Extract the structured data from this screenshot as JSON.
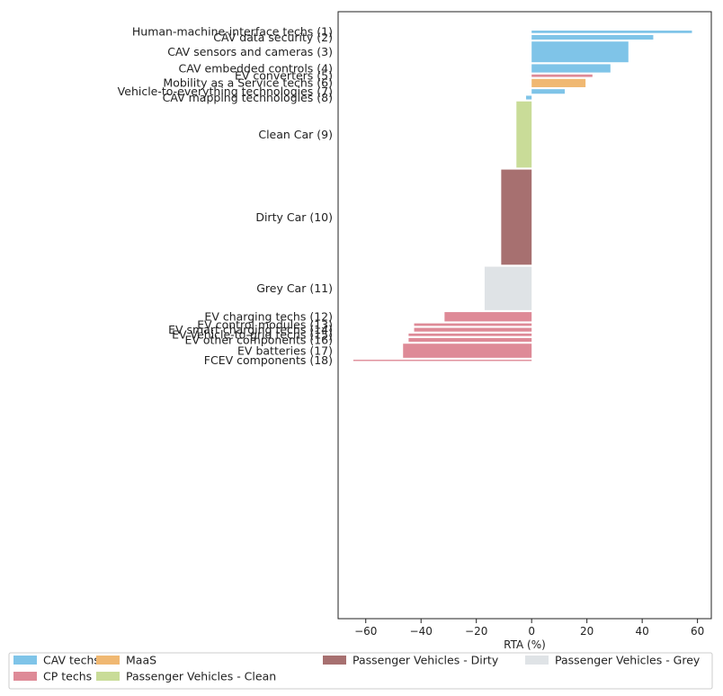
{
  "chart_data": {
    "type": "bar",
    "orientation": "horizontal",
    "title": "",
    "xlabel": "RTA (%)",
    "ylabel": "",
    "xlim": [
      -70,
      65
    ],
    "xticks": [
      -60,
      -40,
      -20,
      0,
      20,
      40,
      60
    ],
    "grid": false,
    "legend_position": "bottom",
    "bar_width_encodes": "relative size of technology field (variable bar thickness)",
    "groups": [
      {
        "name": "CAV techs",
        "color": "#7fc4e8"
      },
      {
        "name": "CP techs",
        "color": "#de8a97"
      },
      {
        "name": "MaaS",
        "color": "#f0b872"
      },
      {
        "name": "Passenger Vehicles - Clean",
        "color": "#c9dc98"
      },
      {
        "name": "Passenger Vehicles - Dirty",
        "color": "#a77070"
      },
      {
        "name": "Passenger Vehicles - Grey",
        "color": "#dfe3e6"
      }
    ],
    "categories": [
      "Human-machine-interface techs (1)",
      "CAV data security (2)",
      "CAV sensors and cameras (3)",
      "CAV embedded controls (4)",
      "EV converters (5)",
      "Mobility as a Service techs (6)",
      "Vehicle-to-everything technologies (7)",
      "CAV mapping technologies (8)",
      "Clean Car (9)",
      "Dirty Car (10)",
      "Grey Car (11)",
      "EV charging techs (12)",
      "EV control modules (13)",
      "EV smart charging techs (14)",
      "EV Vehicle-to-grid techs (15)",
      "EV other components (16)",
      "EV batteries (17)",
      "FCEV components (18)"
    ],
    "values": [
      58,
      44,
      35,
      28.5,
      22,
      19.5,
      12,
      -2,
      -5.5,
      -11,
      -17,
      -31.5,
      -42.5,
      -42.5,
      -44.5,
      -44.5,
      -46.5,
      -64.5
    ],
    "group_index": [
      0,
      0,
      0,
      0,
      1,
      2,
      0,
      0,
      3,
      4,
      5,
      1,
      1,
      1,
      1,
      1,
      1,
      1
    ],
    "bar_thickness": [
      0.12,
      0.22,
      1.0,
      0.4,
      0.12,
      0.4,
      0.22,
      0.18,
      3.2,
      4.6,
      2.1,
      0.45,
      0.12,
      0.18,
      0.12,
      0.18,
      0.68,
      0.06
    ]
  }
}
